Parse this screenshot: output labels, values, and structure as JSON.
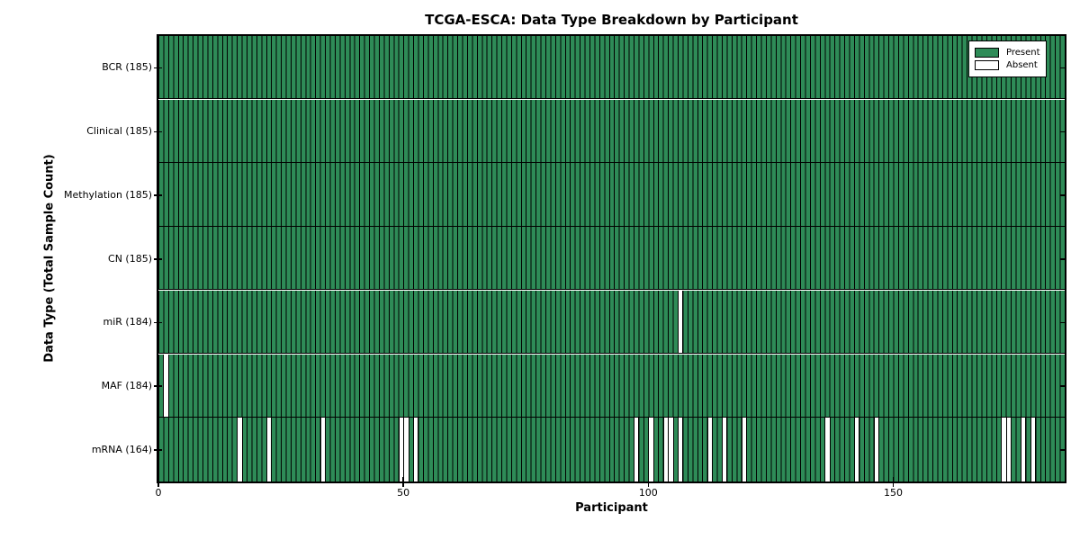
{
  "chart_data": {
    "type": "heatmap",
    "title": "TCGA-ESCA: Data Type Breakdown by Participant",
    "xlabel": "Participant",
    "ylabel": "Data Type (Total Sample Count)",
    "n_participants": 185,
    "x_ticks": [
      0,
      50,
      100,
      150
    ],
    "x_tick_labels": [
      "0",
      "50",
      "100",
      "150"
    ],
    "legend": {
      "position": "upper right",
      "entries": [
        {
          "label": "Present",
          "color": "#2E8B57"
        },
        {
          "label": "Absent",
          "color": "#FFFFFF"
        }
      ]
    },
    "colors": {
      "present": "#2E8B57",
      "absent": "#FFFFFF",
      "edge": "#000000",
      "background": "#FFFFFF"
    },
    "rows": [
      {
        "data_type": "BCR",
        "label": "BCR (185)",
        "present_count": 185,
        "absent_participants": []
      },
      {
        "data_type": "Clinical",
        "label": "Clinical (185)",
        "present_count": 185,
        "absent_participants": []
      },
      {
        "data_type": "Methylation",
        "label": "Methylation (185)",
        "present_count": 185,
        "absent_participants": []
      },
      {
        "data_type": "CN",
        "label": "CN (185)",
        "present_count": 185,
        "absent_participants": []
      },
      {
        "data_type": "miR",
        "label": "miR (184)",
        "present_count": 184,
        "absent_participants": [
          106
        ]
      },
      {
        "data_type": "MAF",
        "label": "MAF (184)",
        "present_count": 184,
        "absent_participants": [
          1
        ]
      },
      {
        "data_type": "mRNA",
        "label": "mRNA (164)",
        "present_count": 164,
        "absent_participants": [
          16,
          22,
          33,
          49,
          50,
          52,
          97,
          100,
          103,
          104,
          106,
          112,
          115,
          119,
          136,
          142,
          146,
          172,
          173,
          176,
          178
        ]
      }
    ]
  }
}
